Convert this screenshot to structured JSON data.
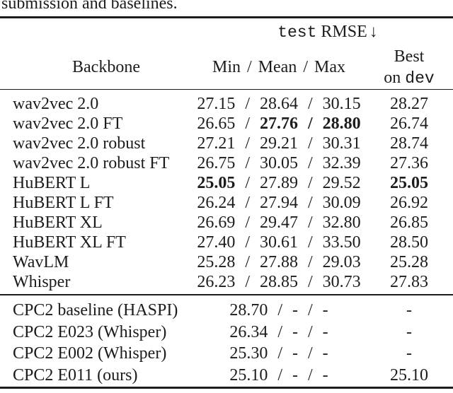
{
  "caption": "submission and baselines.",
  "colors": {
    "text": "#1c1c1c",
    "rule": "#1c1c1c",
    "background": "#ffffff"
  },
  "table": {
    "group_header": {
      "mono": "test",
      "serif": " RMSE",
      "arrow": "↓"
    },
    "columns": {
      "backbone": "Backbone",
      "min_mean_max": "Min / Mean / Max",
      "best_line1": "Best",
      "best_line2_prefix": "on ",
      "best_line2_mono": "dev"
    },
    "rows_main": [
      {
        "backbone": "wav2vec 2.0",
        "values": [
          {
            "text": "27.15 / 28.64 / 30.15",
            "bold": false
          }
        ],
        "dev": {
          "text": "28.27",
          "bold": false
        }
      },
      {
        "backbone": "wav2vec 2.0 FT",
        "values": [
          {
            "text": "26.65 / ",
            "bold": false
          },
          {
            "text": "27.76 / 28.80",
            "bold": true
          }
        ],
        "dev": {
          "text": "26.74",
          "bold": false
        }
      },
      {
        "backbone": "wav2vec 2.0 robust",
        "values": [
          {
            "text": "27.21 / 29.21 / 30.31",
            "bold": false
          }
        ],
        "dev": {
          "text": "28.74",
          "bold": false
        }
      },
      {
        "backbone": "wav2vec 2.0 robust FT",
        "values": [
          {
            "text": "26.75 / 30.05 / 32.39",
            "bold": false
          }
        ],
        "dev": {
          "text": "27.36",
          "bold": false
        }
      },
      {
        "backbone": "HuBERT L",
        "values": [
          {
            "text": "25.05",
            "bold": true
          },
          {
            "text": " / 27.89 / 29.52",
            "bold": false
          }
        ],
        "dev": {
          "text": "25.05",
          "bold": true
        }
      },
      {
        "backbone": "HuBERT L FT",
        "values": [
          {
            "text": "26.24 / 27.94 / 30.09",
            "bold": false
          }
        ],
        "dev": {
          "text": "26.92",
          "bold": false
        }
      },
      {
        "backbone": "HuBERT XL",
        "values": [
          {
            "text": "26.69 / 29.47 / 32.80",
            "bold": false
          }
        ],
        "dev": {
          "text": "26.85",
          "bold": false
        }
      },
      {
        "backbone": "HuBERT XL FT",
        "values": [
          {
            "text": "27.40 / 30.61 / 33.50",
            "bold": false
          }
        ],
        "dev": {
          "text": "28.50",
          "bold": false
        }
      },
      {
        "backbone": "WavLM",
        "values": [
          {
            "text": "25.28 / 27.88 / 29.03",
            "bold": false
          }
        ],
        "dev": {
          "text": "25.28",
          "bold": false
        }
      },
      {
        "backbone": "Whisper",
        "values": [
          {
            "text": "26.23 / 28.85 / 30.73",
            "bold": false
          }
        ],
        "dev": {
          "text": "27.83",
          "bold": false
        }
      }
    ],
    "rows_baselines": [
      {
        "backbone": "CPC2 baseline (HASPI)",
        "values": [
          {
            "text": "28.70 / - / -",
            "bold": false
          }
        ],
        "dev": {
          "text": "-",
          "bold": false
        }
      },
      {
        "backbone": "CPC2 E023 (Whisper)",
        "values": [
          {
            "text": "26.34 / - / -",
            "bold": false
          }
        ],
        "dev": {
          "text": "-",
          "bold": false
        }
      },
      {
        "backbone": "CPC2 E002 (Whisper)",
        "values": [
          {
            "text": "25.30 / - / -",
            "bold": false
          }
        ],
        "dev": {
          "text": "-",
          "bold": false
        }
      },
      {
        "backbone": "CPC2 E011 (ours)",
        "values": [
          {
            "text": "25.10 / - / -",
            "bold": false
          }
        ],
        "dev": {
          "text": "25.10",
          "bold": false
        }
      }
    ]
  }
}
